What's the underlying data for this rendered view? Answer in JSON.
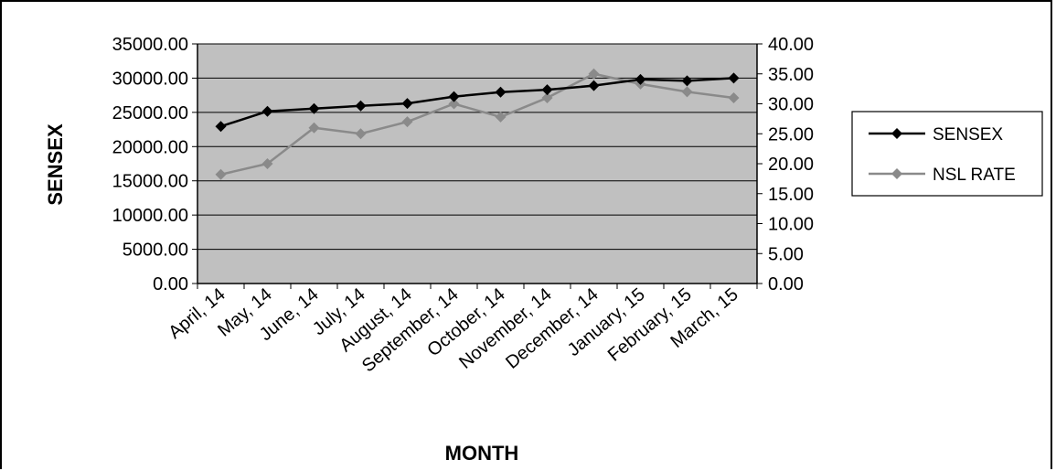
{
  "chart_data": {
    "type": "line",
    "xlabel": "MONTH",
    "ylabel": "SENSEX",
    "y2label": "",
    "categories": [
      "April, 14",
      "May, 14",
      "June, 14",
      "July, 14",
      "August, 14",
      "September, 14",
      "October, 14",
      "November, 14",
      "December, 14",
      "January, 15",
      "February, 15",
      "March, 15"
    ],
    "ylim": [
      0,
      35000
    ],
    "y_ticks": [
      "0.00",
      "5000.00",
      "10000.00",
      "15000.00",
      "20000.00",
      "25000.00",
      "30000.00",
      "35000.00"
    ],
    "y2lim": [
      0,
      40
    ],
    "y2_ticks": [
      "0.00",
      "5.00",
      "10.00",
      "15.00",
      "20.00",
      "25.00",
      "30.00",
      "35.00",
      "40.00"
    ],
    "grid": true,
    "legend_position": "right",
    "series": [
      {
        "name": "SENSEX",
        "axis": "left",
        "color": "#000000",
        "marker": "diamond",
        "values": [
          22950,
          25150,
          25550,
          25950,
          26300,
          27300,
          27950,
          28300,
          28900,
          29800,
          29600,
          30000
        ]
      },
      {
        "name": "NSL RATE",
        "axis": "right",
        "color": "#8a8a8a",
        "marker": "diamond",
        "values": [
          18.2,
          20.0,
          26.0,
          25.0,
          27.0,
          30.0,
          27.8,
          31.0,
          35.0,
          33.3,
          32.0,
          31.0
        ]
      }
    ]
  },
  "colors": {
    "plot_background": "#c0c0c0",
    "gridline": "#000000"
  }
}
